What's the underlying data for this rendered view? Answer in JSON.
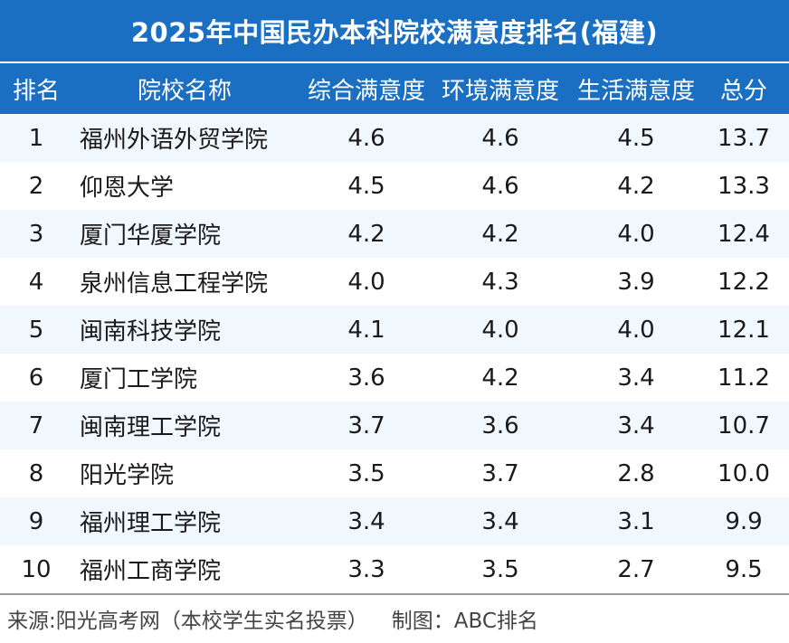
{
  "title": "2025年中国民办本科院校满意度排名(福建)",
  "header": {
    "rank": "排名",
    "school": "院校名称",
    "overall": "综合满意度",
    "environment": "环境满意度",
    "life": "生活满意度",
    "total": "总分"
  },
  "rows": [
    {
      "rank": "1",
      "school": "福州外语外贸学院",
      "overall": "4.6",
      "environment": "4.6",
      "life": "4.5",
      "total": "13.7"
    },
    {
      "rank": "2",
      "school": "仰恩大学",
      "overall": "4.5",
      "environment": "4.6",
      "life": "4.2",
      "total": "13.3"
    },
    {
      "rank": "3",
      "school": "厦门华厦学院",
      "overall": "4.2",
      "environment": "4.2",
      "life": "4.0",
      "total": "12.4"
    },
    {
      "rank": "4",
      "school": "泉州信息工程学院",
      "overall": "4.0",
      "environment": "4.3",
      "life": "3.9",
      "total": "12.2"
    },
    {
      "rank": "5",
      "school": "闽南科技学院",
      "overall": "4.1",
      "environment": "4.0",
      "life": "4.0",
      "total": "12.1"
    },
    {
      "rank": "6",
      "school": "厦门工学院",
      "overall": "3.6",
      "environment": "4.2",
      "life": "3.4",
      "total": "11.2"
    },
    {
      "rank": "7",
      "school": "闽南理工学院",
      "overall": "3.7",
      "environment": "3.6",
      "life": "3.4",
      "total": "10.7"
    },
    {
      "rank": "8",
      "school": "阳光学院",
      "overall": "3.5",
      "environment": "3.7",
      "life": "2.8",
      "total": "10.0"
    },
    {
      "rank": "9",
      "school": "福州理工学院",
      "overall": "3.4",
      "environment": "3.4",
      "life": "3.1",
      "total": "9.9"
    },
    {
      "rank": "10",
      "school": "福州工商学院",
      "overall": "3.3",
      "environment": "3.5",
      "life": "2.7",
      "total": "9.5"
    }
  ],
  "footer": {
    "source": "来源:阳光高考网（本校学生实名投票）",
    "credit": "制图：ABC排名"
  },
  "colors": {
    "header_bg": "#1a6fc2",
    "row_alt_bg": "#f0f8fd",
    "header_text": "#ffffff"
  }
}
